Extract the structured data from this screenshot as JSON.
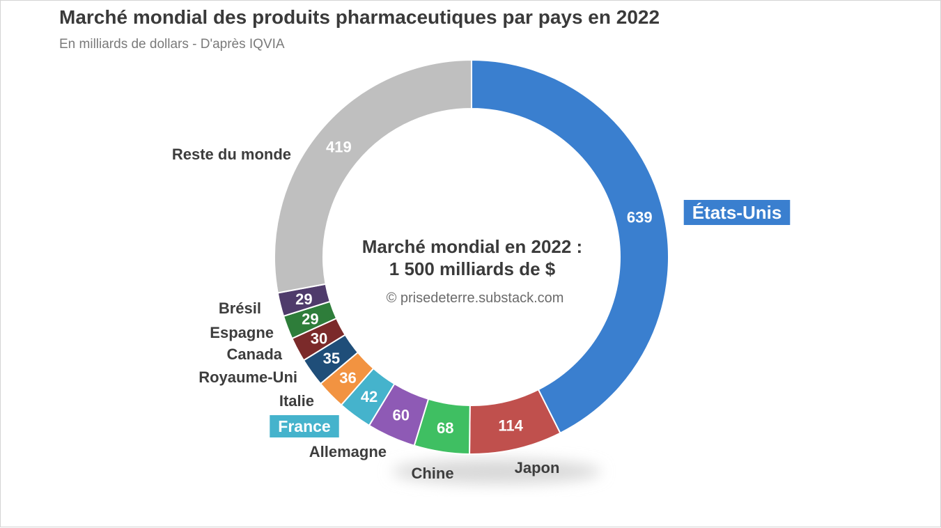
{
  "chart_data": {
    "type": "pie",
    "title": "Marché mondial des produits pharmaceutiques par pays en 2022",
    "subtitle": "En milliards de dollars - D'après IQVIA",
    "center_text": [
      "Marché mondial en 2022 :",
      "1 500 milliards de $"
    ],
    "credit": "© prisedeterre.substack.com",
    "slices": [
      {
        "label": "États-Unis",
        "value": 639,
        "color": "#3a7fcf",
        "highlight": true
      },
      {
        "label": "Japon",
        "value": 114,
        "color": "#c0504d"
      },
      {
        "label": "Chine",
        "value": 68,
        "color": "#3fbf62"
      },
      {
        "label": "Allemagne",
        "value": 60,
        "color": "#8e5ab5"
      },
      {
        "label": "France",
        "value": 42,
        "color": "#45b3cc",
        "highlight": true
      },
      {
        "label": "Italie",
        "value": 36,
        "color": "#f29341"
      },
      {
        "label": "Royaume-Uni",
        "value": 35,
        "color": "#1f4e79"
      },
      {
        "label": "Canada",
        "value": 30,
        "color": "#7b2a2a"
      },
      {
        "label": "Espagne",
        "value": 29,
        "color": "#2e7d3a"
      },
      {
        "label": "Brésil",
        "value": 29,
        "color": "#4f3b6b"
      },
      {
        "label": "Reste du monde",
        "value": 419,
        "color": "#bfbfbf"
      }
    ]
  }
}
